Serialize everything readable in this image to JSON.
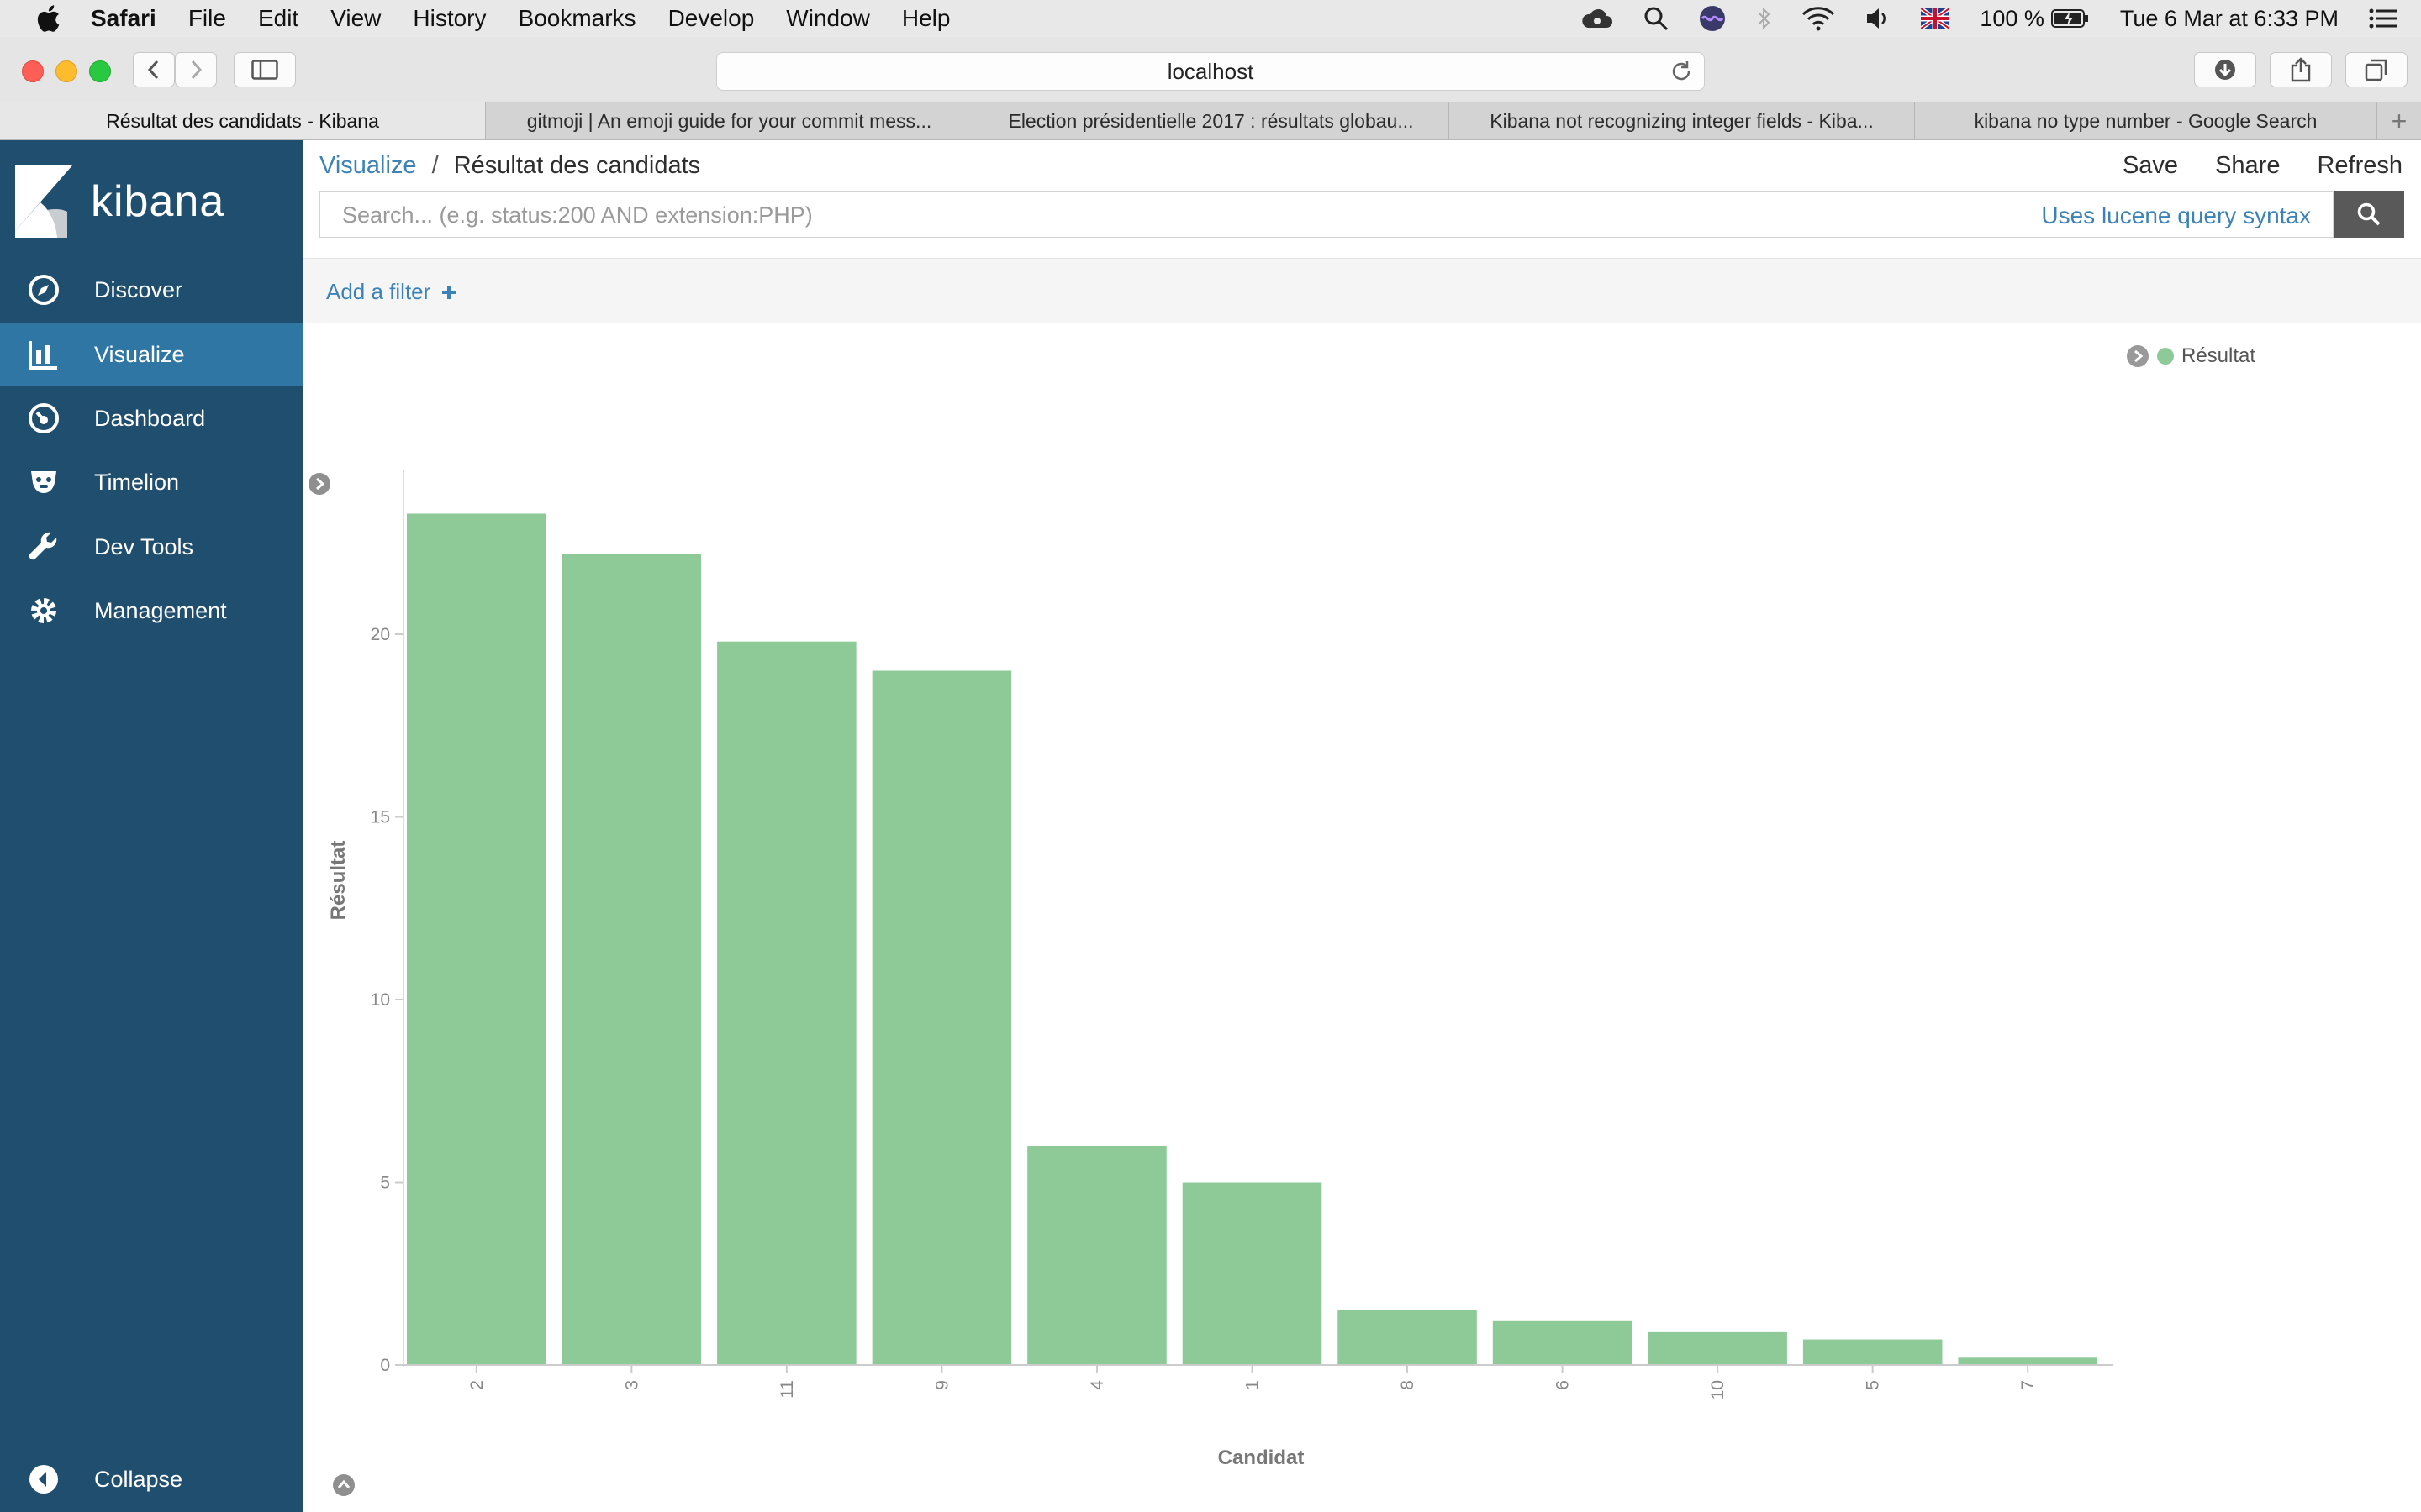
{
  "menubar": {
    "app": "Safari",
    "items": [
      "File",
      "Edit",
      "View",
      "History",
      "Bookmarks",
      "Develop",
      "Window",
      "Help"
    ],
    "battery": "100 %",
    "datetime": "Tue 6 Mar at  6:33 PM"
  },
  "browser": {
    "url": "localhost",
    "tabs": [
      {
        "title": "Résultat des candidats - Kibana",
        "active": true
      },
      {
        "title": "gitmoji | An emoji guide for your commit mess..."
      },
      {
        "title": "Election présidentielle 2017 : résultats globau..."
      },
      {
        "title": "Kibana not recognizing integer fields - Kiba..."
      },
      {
        "title": "kibana no type number - Google Search"
      }
    ]
  },
  "sidebar": {
    "logo": "kibana",
    "items": [
      {
        "label": "Discover",
        "icon": "compass-icon"
      },
      {
        "label": "Visualize",
        "icon": "bar-chart-icon",
        "active": true
      },
      {
        "label": "Dashboard",
        "icon": "dashboard-gauge-icon"
      },
      {
        "label": "Timelion",
        "icon": "timelion-bear-icon"
      },
      {
        "label": "Dev Tools",
        "icon": "wrench-icon"
      },
      {
        "label": "Management",
        "icon": "gear-icon"
      }
    ],
    "collapse_label": "Collapse"
  },
  "header": {
    "breadcrumb_root": "Visualize",
    "breadcrumb_sep": "/",
    "title": "Résultat des candidats",
    "save": "Save",
    "share": "Share",
    "refresh": "Refresh"
  },
  "search": {
    "placeholder": "Search... (e.g. status:200 AND extension:PHP)",
    "syntax_link": "Uses lucene query syntax"
  },
  "filter": {
    "add_label": "Add a filter"
  },
  "chart_data": {
    "type": "bar",
    "title": "",
    "xlabel": "Candidat",
    "ylabel": "Résultat",
    "categories": [
      "2",
      "3",
      "11",
      "9",
      "4",
      "1",
      "8",
      "6",
      "10",
      "5",
      "7"
    ],
    "series": [
      {
        "name": "Résultat",
        "values": [
          23.3,
          22.2,
          19.8,
          19.0,
          6.0,
          5.0,
          1.5,
          1.2,
          0.9,
          0.7,
          0.2
        ]
      }
    ],
    "ylim": [
      0,
      24
    ],
    "yticks": [
      0,
      5,
      10,
      15,
      20
    ],
    "color": "#8dca98",
    "legend": "top-right",
    "grid": false
  }
}
